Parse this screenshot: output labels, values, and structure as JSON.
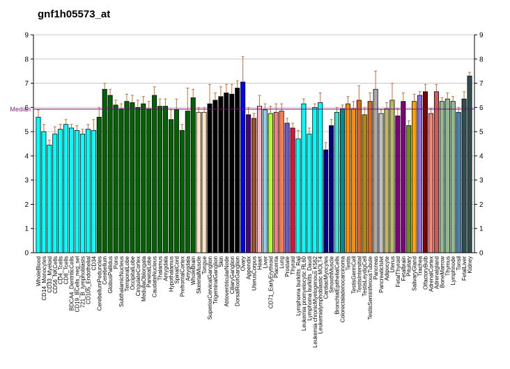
{
  "chart_data": {
    "type": "bar",
    "title": "gnf1h05573_at",
    "xlabel": "",
    "ylabel": "",
    "ylim": [
      0,
      9
    ],
    "yticks": [
      0,
      1,
      2,
      3,
      4,
      5,
      6,
      7,
      8,
      9
    ],
    "grid": true,
    "median": {
      "label": "Median",
      "value": 5.93,
      "color": "#800080"
    },
    "categories": [
      "WholeBlood",
      "CD14_Monocytes",
      "CD33_Myeloid",
      "CD56_NKCells",
      "CD4_Tcells",
      "CD8_Tcells",
      "BDCA4_DentriticCells",
      "CD19_BCells_neg_sel",
      "721_B_lymphoblasts",
      "CD105_Endothelial",
      "CD34",
      "CerebellumPeduncles",
      "Cerebellum",
      "GlobusPallidus",
      "Pons",
      "SubthalamicNucleus",
      "TemporalLobe",
      "OccipitalLobe",
      "CingulateCortex",
      "MedullaOblongata",
      "ParietalLobe",
      "CaudateNucleus",
      "Thalamus",
      "Amygdala",
      "Hypothalamus",
      "SpinalCord",
      "PrefrontalCortex",
      "Amygdala",
      "WholeBrain",
      "SkeletalMuscle",
      "Tongue",
      "SuperiorCervicalGanglion",
      "TrigeminalGanglion",
      "Skin",
      "AtrioventricularNode",
      "CiliaryGanglion",
      "DorsalRootGanglion",
      "Ovary",
      "Appendix",
      "UterusCorpus",
      "Heart",
      "Liver",
      "CD71_EarlyErythroid",
      "Placenta",
      "Lung",
      "Prostate",
      "Thyroid",
      "Lymphoma burkitts_Raji",
      "Leukemia promyelocytic HL60",
      "Lymphoma burkitts_Daudi",
      "Leukemia chronicMyelogenous K562",
      "Leukemialymphoblastic MOLT4",
      "CardiacMyocytes",
      "SmoothMuscle",
      "BronchialEpithelialCells",
      "Colorectaladenocarcinoma",
      "Testis",
      "TestisGermCell",
      "TestisIntersitial",
      "TestisLeydigCell",
      "TestisSeminiferousTubule",
      "Pancreas",
      "PancreaticIslet",
      "Adipocyte",
      "Uterus",
      "FetalThyroid",
      "Fetalbrain",
      "Pituitary",
      "SalivaryGland",
      "Trachea",
      "OlfactoryBulb",
      "AdrenalCortex",
      "Adrenalgland",
      "BoneMarrow",
      "Thymus",
      "Lymphnode",
      "Tonsil",
      "FetalLiver",
      "Kidney"
    ],
    "labels_shown": [
      "WholeBlood",
      "CD14_Monocytes",
      "CD33_Myeloid",
      "CD56_NKCells",
      "CD4_Tcells",
      "CD8_Tcells",
      "BDCA4_DentriticCells",
      "CD19_BCells_neg_sel",
      "721_B_lymphoblasts",
      "CD105_Endothelial",
      "CD34",
      "CerebellumPeduncles",
      "Cerebellum",
      "GlobusPallidus",
      "Pons",
      "SubthalamicNucleus",
      "TemporalLobe",
      "OccipitalLobe",
      "CingulateCortex",
      "MedullaOblongata",
      "ParietalLobe",
      "CaudateNucleus",
      "Thalamus",
      "Amygdala",
      "Hypothalamus",
      "SpinalCord",
      "PrefrontalCortex",
      "Amygdala",
      "WholeBrain",
      "SkeletalMuscle",
      "Tongue",
      "SuperiorCervicalGanglion",
      "TrigeminalGanglion",
      "Skin",
      "AtrioventricularNode",
      "CiliaryGanglion",
      "DorsalRootGanglion",
      "Ovary",
      "Appendix",
      "UterusCorpus",
      "Heart",
      "Liver",
      "CD71_EarlyErythroid",
      "Placenta",
      "Lung",
      "Prostate",
      "Thyroid",
      "Lymphoma burkitts_Raji",
      "Leukemia promyelocytic HL60",
      "Lymphoma burkitts_Daudi",
      "Leukemia chronicMyelogenous K562",
      "Leukemialymphoblastic MOLT4",
      "CardiacMyocytes",
      "SmoothMuscle",
      "BronchialEpithelialCells",
      "Colorectaladenocarcinoma",
      "Testis",
      "TestisGermCell",
      "TestisIntersitial",
      "TestisLeydigCell",
      "TestisSeminiferousTubule",
      "Pancreas",
      "PancreaticIslet",
      "Adipocyte",
      "Uterus",
      "FetalThyroid",
      "Fetalbrain",
      "Pituitary",
      "SalivaryGland",
      "Trachea",
      "OlfactoryBulb",
      "AdrenalCortex",
      "Adrenalgland",
      "BoneMarrow",
      "Thymus",
      "Lymphnode",
      "Tonsil",
      "FetalLiver",
      "Kidney"
    ],
    "values": [
      5.6,
      5.0,
      4.45,
      4.9,
      5.1,
      5.3,
      5.15,
      5.05,
      4.9,
      5.1,
      5.05,
      5.6,
      6.75,
      6.5,
      6.1,
      5.95,
      6.25,
      6.2,
      6.0,
      6.15,
      5.95,
      6.5,
      6.05,
      6.05,
      5.5,
      5.9,
      5.05,
      5.85,
      6.4,
      5.8,
      5.8,
      6.15,
      6.3,
      6.45,
      6.6,
      6.55,
      6.8,
      7.05,
      5.7,
      5.55,
      6.05,
      5.9,
      5.75,
      5.8,
      5.85,
      5.35,
      5.15,
      4.7,
      6.15,
      4.9,
      6.0,
      6.2,
      4.25,
      5.25,
      5.8,
      5.95,
      6.15,
      5.95,
      6.3,
      5.7,
      6.25,
      6.75,
      5.75,
      5.95,
      6.3,
      5.65,
      6.25,
      5.25,
      6.25,
      6.5,
      6.65,
      5.75,
      6.65,
      6.25,
      6.35,
      6.25,
      5.8,
      6.35,
      7.3
    ],
    "errors": [
      0.3,
      0.3,
      0.2,
      0.3,
      0.2,
      0.2,
      0.15,
      0.2,
      0.2,
      0.2,
      0.45,
      0.4,
      0.25,
      0.25,
      0.2,
      0.2,
      0.3,
      0.3,
      0.3,
      0.3,
      0.3,
      0.35,
      0.3,
      0.3,
      0.4,
      0.45,
      0.25,
      0.95,
      0.35,
      0.2,
      0.2,
      0.8,
      0.3,
      0.4,
      0.35,
      0.4,
      0.3,
      1.05,
      0.3,
      0.2,
      0.45,
      0.25,
      0.3,
      0.35,
      0.3,
      0.2,
      0.2,
      0.35,
      0.2,
      0.25,
      0.15,
      0.4,
      0.3,
      0.25,
      0.2,
      0.15,
      0.3,
      0.3,
      0.6,
      0.3,
      0.35,
      0.75,
      0.15,
      0.25,
      0.7,
      0.3,
      0.35,
      0.2,
      0.3,
      0.15,
      0.3,
      0.2,
      0.3,
      0.15,
      0.25,
      0.2,
      0.2,
      0.3,
      0.15
    ],
    "colors": [
      "#00ffff",
      "#00ffff",
      "#00ffff",
      "#00ffff",
      "#00ffff",
      "#00ffff",
      "#00ffff",
      "#00ffff",
      "#00ffff",
      "#00ffff",
      "#00ffff",
      "#006400",
      "#006400",
      "#006400",
      "#006400",
      "#006400",
      "#006400",
      "#006400",
      "#006400",
      "#006400",
      "#006400",
      "#006400",
      "#006400",
      "#006400",
      "#006400",
      "#006400",
      "#006400",
      "#006400",
      "#006400",
      "#ffe4c4",
      "#ffe4c4",
      "#000000",
      "#000000",
      "#000000",
      "#000000",
      "#000000",
      "#000000",
      "#0000ff",
      "#4b0082",
      "#a0522d",
      "#ffb6c1",
      "#87ceeb",
      "#adff2f",
      "#f08080",
      "#ff7f50",
      "#6a5acd",
      "#dc143c",
      "#00ffff",
      "#00ffff",
      "#00ffff",
      "#00ffff",
      "#00ffff",
      "#00008b",
      "#00008b",
      "#40e0d0",
      "#008b8b",
      "#ff8c00",
      "#ff8c00",
      "#d2691e",
      "#b8860b",
      "#d2691e",
      "#a9a9a9",
      "#c0c0c0",
      "#bdb76b",
      "#bdb76b",
      "#800080",
      "#800080",
      "#6b8e23",
      "#ffa500",
      "#9370db",
      "#800000",
      "#fa8072",
      "#cd5c5c",
      "#8fbc8f",
      "#8fbc8f",
      "#8fbc8f",
      "#4682b4",
      "#2f4f4f",
      "#2f4f4f"
    ]
  }
}
